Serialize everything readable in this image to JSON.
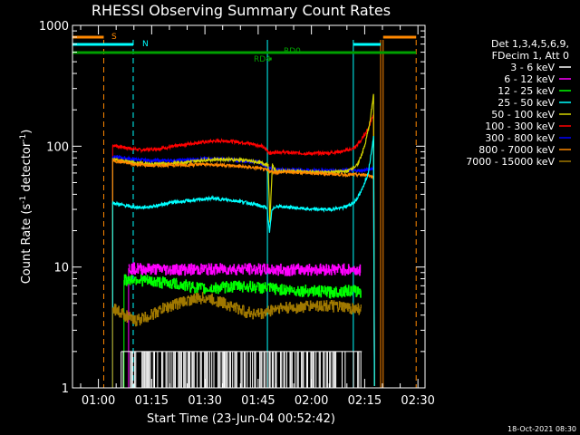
{
  "chart_data": {
    "type": "line",
    "title": "RHESSI Observing Summary Count Rates",
    "xlabel": "Start Time (23-Jun-04 00:52:42)",
    "ylabel": "Count Rate (s",
    "ylabel_sup1": "-1",
    "ylabel_mid": " detector",
    "ylabel_sup2": "-1",
    "ylabel_end": ")",
    "y_scale": "log",
    "ylim": [
      1,
      1000
    ],
    "xlim_minutes": [
      52.7,
      152
    ],
    "x_ticks": [
      {
        "m": 60,
        "label": "01:00"
      },
      {
        "m": 75,
        "label": "01:15"
      },
      {
        "m": 90,
        "label": "01:30"
      },
      {
        "m": 105,
        "label": "01:45"
      },
      {
        "m": 120,
        "label": "02:00"
      },
      {
        "m": 135,
        "label": "02:15"
      },
      {
        "m": 150,
        "label": "02:30"
      }
    ],
    "y_ticks": [
      {
        "v": 1,
        "label": "1"
      },
      {
        "v": 10,
        "label": "10"
      },
      {
        "v": 100,
        "label": "100"
      },
      {
        "v": 1000,
        "label": "1000"
      }
    ],
    "legend": {
      "header": [
        "Det 1,3,4,5,6,9,",
        "FDecim 1, Att 0"
      ],
      "entries": [
        {
          "label": "3 - 6 keV",
          "color": "#ffffff"
        },
        {
          "label": "6 - 12 keV",
          "color": "#ff00ff"
        },
        {
          "label": "12 - 25 keV",
          "color": "#00ff00"
        },
        {
          "label": "25 - 50 keV",
          "color": "#00ffff"
        },
        {
          "label": "50 - 100 keV",
          "color": "#d4d400"
        },
        {
          "label": "100 - 300 keV",
          "color": "#ff0000"
        },
        {
          "label": "300 - 800 keV",
          "color": "#0000ff"
        },
        {
          "label": "800 - 7000 keV",
          "color": "#ff8800"
        },
        {
          "label": "7000 - 15000 keV",
          "color": "#a07800"
        }
      ]
    },
    "flags": [
      {
        "label": "S",
        "color": "#ff8800",
        "segments": [
          [
            52.7,
            61.5
          ],
          [
            140.2,
            149.5
          ]
        ]
      },
      {
        "label": "N",
        "color": "#00ffff",
        "segments": [
          [
            52.7,
            69.8
          ],
          [
            131.8,
            139.5
          ]
        ]
      },
      {
        "label": "RD0",
        "color": "#00a000",
        "segments": [
          [
            52.7,
            149.5
          ]
        ]
      },
      {
        "label": "RD4",
        "color": "#00a000",
        "segments": [
          [
            108.2,
            108.8
          ]
        ]
      }
    ],
    "vertical_markers": [
      {
        "m": 61.5,
        "color": "#ff8800",
        "style": "dashed"
      },
      {
        "m": 69.8,
        "color": "#00ffff",
        "style": "dashed"
      },
      {
        "m": 107.6,
        "color": "#00ffff",
        "style": "solid"
      },
      {
        "m": 131.8,
        "color": "#00ffff",
        "style": "solid"
      },
      {
        "m": 139.5,
        "color": "#ff8800",
        "style": "solid"
      },
      {
        "m": 140.2,
        "color": "#ff8800",
        "style": "solid"
      },
      {
        "m": 149.5,
        "color": "#ff8800",
        "style": "dashed"
      }
    ],
    "series": [
      {
        "name": "100 - 300 keV",
        "color": "#ff0000",
        "style": "line",
        "points": [
          [
            64,
            102
          ],
          [
            68,
            97
          ],
          [
            72,
            93
          ],
          [
            76,
            95
          ],
          [
            80,
            98
          ],
          [
            84,
            103
          ],
          [
            88,
            107
          ],
          [
            92,
            110
          ],
          [
            96,
            111
          ],
          [
            100,
            108
          ],
          [
            104,
            104
          ],
          [
            106,
            100
          ],
          [
            108.5,
            87
          ],
          [
            110,
            90
          ],
          [
            115,
            88
          ],
          [
            120,
            87
          ],
          [
            125,
            88
          ],
          [
            129,
            91
          ],
          [
            132,
            96
          ],
          [
            134,
            112
          ],
          [
            136,
            140
          ],
          [
            137.5,
            185
          ]
        ]
      },
      {
        "name": "300 - 800 keV",
        "color": "#0000ff",
        "style": "line",
        "points": [
          [
            64,
            82
          ],
          [
            70,
            78
          ],
          [
            75,
            76
          ],
          [
            80,
            76
          ],
          [
            85,
            77
          ],
          [
            90,
            79
          ],
          [
            95,
            78
          ],
          [
            100,
            76
          ],
          [
            105,
            74
          ],
          [
            108.5,
            66
          ],
          [
            110,
            64
          ],
          [
            115,
            64
          ],
          [
            120,
            63
          ],
          [
            125,
            63
          ],
          [
            130,
            63
          ],
          [
            134,
            63
          ],
          [
            136,
            64
          ],
          [
            137.5,
            66
          ]
        ]
      },
      {
        "name": "50 - 100 keV",
        "color": "#d4d400",
        "style": "line",
        "points": [
          [
            64,
            78
          ],
          [
            70,
            73
          ],
          [
            75,
            71
          ],
          [
            80,
            72
          ],
          [
            85,
            74
          ],
          [
            90,
            77
          ],
          [
            95,
            78
          ],
          [
            100,
            77
          ],
          [
            105,
            74
          ],
          [
            107.8,
            70
          ],
          [
            108.3,
            24
          ],
          [
            109,
            70
          ],
          [
            110,
            62
          ],
          [
            115,
            62
          ],
          [
            120,
            61
          ],
          [
            125,
            61
          ],
          [
            130,
            62
          ],
          [
            133,
            70
          ],
          [
            135,
            100
          ],
          [
            136.5,
            160
          ],
          [
            137.5,
            270
          ]
        ]
      },
      {
        "name": "800 - 7000 keV",
        "color": "#ff8800",
        "style": "line",
        "points": [
          [
            64,
            76
          ],
          [
            70,
            71
          ],
          [
            75,
            69
          ],
          [
            80,
            70
          ],
          [
            85,
            70
          ],
          [
            90,
            71
          ],
          [
            95,
            70
          ],
          [
            100,
            68
          ],
          [
            105,
            66
          ],
          [
            108.5,
            62
          ],
          [
            110,
            61
          ],
          [
            115,
            61
          ],
          [
            120,
            60
          ],
          [
            125,
            59
          ],
          [
            130,
            58
          ],
          [
            134,
            58
          ],
          [
            136,
            58
          ],
          [
            137.5,
            55
          ]
        ]
      },
      {
        "name": "25 - 50 keV",
        "color": "#00ffff",
        "style": "line",
        "points": [
          [
            64,
            34
          ],
          [
            68,
            32
          ],
          [
            72,
            31
          ],
          [
            76,
            32
          ],
          [
            80,
            34
          ],
          [
            84,
            35
          ],
          [
            88,
            36
          ],
          [
            92,
            37
          ],
          [
            96,
            36
          ],
          [
            100,
            35
          ],
          [
            104,
            33
          ],
          [
            107.5,
            31
          ],
          [
            108.2,
            19
          ],
          [
            108.8,
            29
          ],
          [
            110,
            32
          ],
          [
            115,
            31
          ],
          [
            120,
            30
          ],
          [
            125,
            30
          ],
          [
            129,
            31
          ],
          [
            132,
            34
          ],
          [
            134,
            42
          ],
          [
            136,
            60
          ],
          [
            137.5,
            120
          ]
        ]
      },
      {
        "name": "6 - 12 keV",
        "color": "#ff00ff",
        "style": "step",
        "points": [
          [
            68.5,
            9.8
          ],
          [
            72,
            9.7
          ],
          [
            80,
            9.6
          ],
          [
            90,
            9.6
          ],
          [
            100,
            9.7
          ],
          [
            110,
            9.5
          ],
          [
            120,
            9.6
          ],
          [
            130,
            9.6
          ],
          [
            133.8,
            9.4
          ]
        ]
      },
      {
        "name": "12 - 25 keV",
        "color": "#00ff00",
        "style": "step",
        "points": [
          [
            67.2,
            7.8
          ],
          [
            70,
            8.0
          ],
          [
            75,
            7.6
          ],
          [
            80,
            7.4
          ],
          [
            85,
            7.0
          ],
          [
            90,
            6.6
          ],
          [
            95,
            6.8
          ],
          [
            100,
            7.0
          ],
          [
            105,
            6.8
          ],
          [
            110,
            6.6
          ],
          [
            115,
            6.4
          ],
          [
            120,
            6.4
          ],
          [
            125,
            6.2
          ],
          [
            130,
            6.4
          ],
          [
            134,
            6.3
          ]
        ]
      },
      {
        "name": "7000 - 15000 keV",
        "color": "#a07800",
        "style": "step",
        "points": [
          [
            64,
            4.6
          ],
          [
            67,
            4.1
          ],
          [
            70,
            3.6
          ],
          [
            74,
            3.9
          ],
          [
            78,
            4.5
          ],
          [
            82,
            5.0
          ],
          [
            86,
            5.4
          ],
          [
            90,
            5.6
          ],
          [
            94,
            5.2
          ],
          [
            98,
            4.7
          ],
          [
            102,
            4.2
          ],
          [
            106,
            4.1
          ],
          [
            110,
            4.6
          ],
          [
            115,
            4.6
          ],
          [
            120,
            4.8
          ],
          [
            125,
            4.8
          ],
          [
            130,
            4.6
          ],
          [
            134,
            4.5
          ]
        ]
      },
      {
        "name": "3 - 6 keV",
        "color": "#ffffff",
        "style": "spikes",
        "points": [
          [
            66.4,
            2.0
          ],
          [
            134.2,
            2.0
          ]
        ]
      }
    ],
    "timestamp": "18-Oct-2021 08:30"
  }
}
